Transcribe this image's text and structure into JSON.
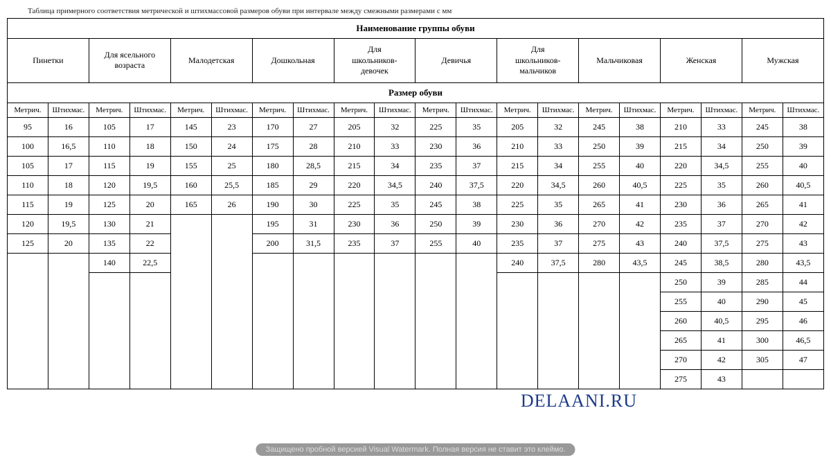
{
  "topCutText": "Таблица примерного соответствия метрической и штихмассовой размеров обуви при интервале между смежными размерами с мм",
  "headers": {
    "groupTitle": "Наименование группы обуви",
    "sizeTitle": "Размер обуви",
    "groups": [
      "Пинетки",
      "Для ясельного возраста",
      "Малодетская",
      "Дошкольная",
      "Для школьников-девочек",
      "Девичья",
      "Для школьников-мальчиков",
      "Мальчиковая",
      "Женская",
      "Мужская"
    ],
    "units": [
      "Метрич.",
      "Штихмас."
    ]
  },
  "rows": [
    [
      "95",
      "16",
      "105",
      "17",
      "145",
      "23",
      "170",
      "27",
      "205",
      "32",
      "225",
      "35",
      "205",
      "32",
      "245",
      "38",
      "210",
      "33",
      "245",
      "38"
    ],
    [
      "100",
      "16,5",
      "110",
      "18",
      "150",
      "24",
      "175",
      "28",
      "210",
      "33",
      "230",
      "36",
      "210",
      "33",
      "250",
      "39",
      "215",
      "34",
      "250",
      "39"
    ],
    [
      "105",
      "17",
      "115",
      "19",
      "155",
      "25",
      "180",
      "28,5",
      "215",
      "34",
      "235",
      "37",
      "215",
      "34",
      "255",
      "40",
      "220",
      "34,5",
      "255",
      "40"
    ],
    [
      "110",
      "18",
      "120",
      "19,5",
      "160",
      "25,5",
      "185",
      "29",
      "220",
      "34,5",
      "240",
      "37,5",
      "220",
      "34,5",
      "260",
      "40,5",
      "225",
      "35",
      "260",
      "40,5"
    ],
    [
      "115",
      "19",
      "125",
      "20",
      "165",
      "26",
      "190",
      "30",
      "225",
      "35",
      "245",
      "38",
      "225",
      "35",
      "265",
      "41",
      "230",
      "36",
      "265",
      "41"
    ],
    [
      "120",
      "19,5",
      "130",
      "21",
      "",
      "",
      "195",
      "31",
      "230",
      "36",
      "250",
      "39",
      "230",
      "36",
      "270",
      "42",
      "235",
      "37",
      "270",
      "42"
    ],
    [
      "125",
      "20",
      "135",
      "22",
      "",
      "",
      "200",
      "31,5",
      "235",
      "37",
      "255",
      "40",
      "235",
      "37",
      "275",
      "43",
      "240",
      "37,5",
      "275",
      "43"
    ],
    [
      "",
      "",
      "140",
      "22,5",
      "",
      "",
      "",
      "",
      "",
      "",
      "",
      "",
      "240",
      "37,5",
      "280",
      "43,5",
      "245",
      "38,5",
      "280",
      "43,5"
    ],
    [
      "",
      "",
      "",
      "",
      "",
      "",
      "",
      "",
      "",
      "",
      "",
      "",
      "",
      "",
      "",
      "",
      "250",
      "39",
      "285",
      "44"
    ],
    [
      "",
      "",
      "",
      "",
      "",
      "",
      "",
      "",
      "",
      "",
      "",
      "",
      "",
      "",
      "",
      "",
      "255",
      "40",
      "290",
      "45"
    ],
    [
      "",
      "",
      "",
      "",
      "",
      "",
      "",
      "",
      "",
      "",
      "",
      "",
      "",
      "",
      "",
      "",
      "260",
      "40,5",
      "295",
      "46"
    ],
    [
      "",
      "",
      "",
      "",
      "",
      "",
      "",
      "",
      "",
      "",
      "",
      "",
      "",
      "",
      "",
      "",
      "265",
      "41",
      "300",
      "46,5"
    ],
    [
      "",
      "",
      "",
      "",
      "",
      "",
      "",
      "",
      "",
      "",
      "",
      "",
      "",
      "",
      "",
      "",
      "270",
      "42",
      "305",
      "47"
    ],
    [
      "",
      "",
      "",
      "",
      "",
      "",
      "",
      "",
      "",
      "",
      "",
      "",
      "",
      "",
      "",
      "",
      "275",
      "43",
      "",
      ""
    ]
  ],
  "watermarkSite": "DELAANI.RU",
  "watermarkBottom": "Защищено пробной версией Visual Watermark. Полная версия не ставит это клеймо."
}
